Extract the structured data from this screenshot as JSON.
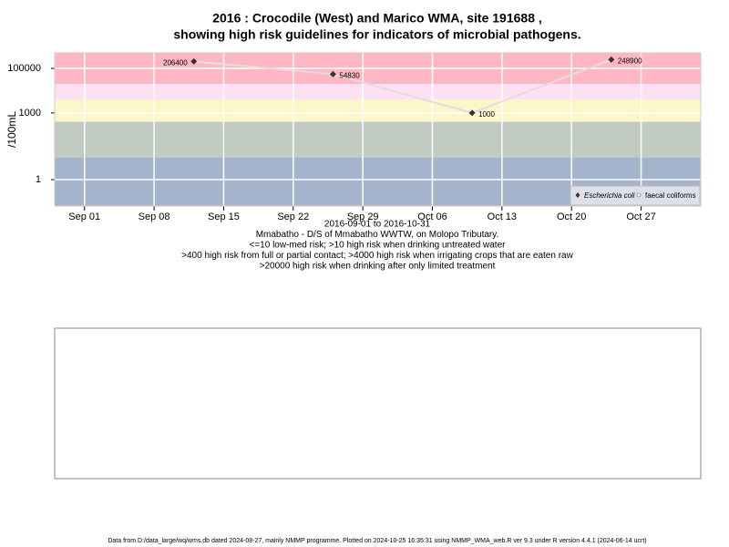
{
  "chart_data": {
    "type": "line",
    "title": "2016 : Crocodile (West) and Marico WMA, site 191688 ,",
    "subtitle": "showing high risk guidelines for indicators of microbial pathogens.",
    "ylabel": "/100mL",
    "log_y": true,
    "grid": true,
    "legend": "bottom-right",
    "x": [
      "2016-09-12",
      "2016-09-26",
      "2016-10-10",
      "2016-10-24"
    ],
    "xlim": [
      "2016-08-29",
      "2016-11-02"
    ],
    "xticks": [
      {
        "value": "2016-09-01",
        "label": "Sep 01"
      },
      {
        "value": "2016-09-08",
        "label": "Sep 08"
      },
      {
        "value": "2016-09-15",
        "label": "Sep 15"
      },
      {
        "value": "2016-09-22",
        "label": "Sep 22"
      },
      {
        "value": "2016-09-29",
        "label": "Sep 29"
      },
      {
        "value": "2016-10-06",
        "label": "Oct 06"
      },
      {
        "value": "2016-10-13",
        "label": "Oct 13"
      },
      {
        "value": "2016-10-20",
        "label": "Oct 20"
      },
      {
        "value": "2016-10-27",
        "label": "Oct 27"
      }
    ],
    "ylim": [
      0.065,
      500000
    ],
    "yticks": [
      1,
      1000,
      100000
    ],
    "bands": [
      {
        "from": 0.065,
        "to": 10,
        "color": "#a3b4cc"
      },
      {
        "from": 10,
        "to": 400,
        "color": "#c1cbc1"
      },
      {
        "from": 400,
        "to": 4000,
        "color": "#fdf6c8"
      },
      {
        "from": 4000,
        "to": 20000,
        "color": "#fde0f2"
      },
      {
        "from": 20000,
        "to": 500000,
        "color": "#ffb7c3"
      }
    ],
    "series": [
      {
        "name": "Escherichia coli",
        "color": "#333333",
        "line_color": "#e6dbe2",
        "values": [
          206400,
          54830,
          1000,
          248900
        ]
      },
      {
        "name": "faecal coliforms",
        "color": "#ffffff",
        "values": [
          null,
          null,
          null,
          null
        ]
      }
    ],
    "notes": [
      "2016-09-01 to 2016-10-31",
      "Mmabatho - D/S of Mmabatho WWTW, on Molopo Tributary.",
      "<=10 low-med risk; >10 high risk when drinking untreated water",
      ">400 high risk from full or partial contact; >4000 high risk when irrigating crops that are eaten raw",
      ">20000 high risk when drinking after only limited treatment"
    ],
    "footer": "Data from D:/data_large/wq/wms.db dated 2024-08-27, mainly NMMP programme. Plotted on 2024-10-25 16:35:31 using NMMP_WMA_web.R ver 9.3 under R version 4.4.1 (2024-06-14 ucrt)"
  }
}
